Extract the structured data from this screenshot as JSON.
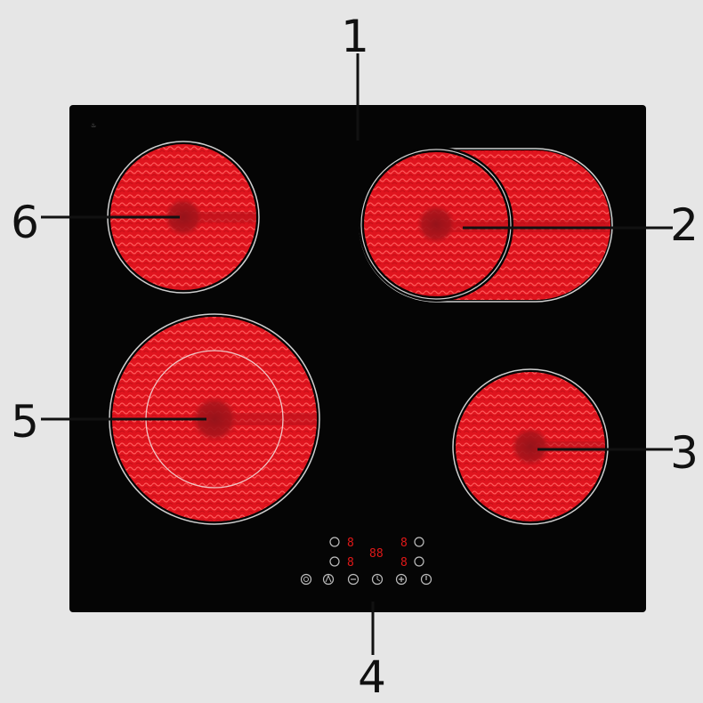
{
  "callouts": [
    {
      "id": "1",
      "text": "1"
    },
    {
      "id": "2",
      "text": "2"
    },
    {
      "id": "3",
      "text": "3"
    },
    {
      "id": "4",
      "text": "4"
    },
    {
      "id": "5",
      "text": "5"
    },
    {
      "id": "6",
      "text": "6"
    }
  ],
  "colors": {
    "background": "#e6e6e6",
    "glass": "#050505",
    "heating_element": "#e0141e",
    "element_center": "#a8131a",
    "rim": "#cfcfcf",
    "display": "#e01818",
    "control_icon": "#bdbdbd"
  },
  "control_panel": {
    "displays": [
      "8",
      "8",
      "88",
      "8",
      "8"
    ],
    "icons": [
      "rotate-icon",
      "rotate-icon",
      "rotate-icon",
      "rotate-icon",
      "lock-icon",
      "child-lock-icon",
      "minus-icon",
      "timer-icon",
      "plus-icon",
      "power-icon"
    ]
  }
}
